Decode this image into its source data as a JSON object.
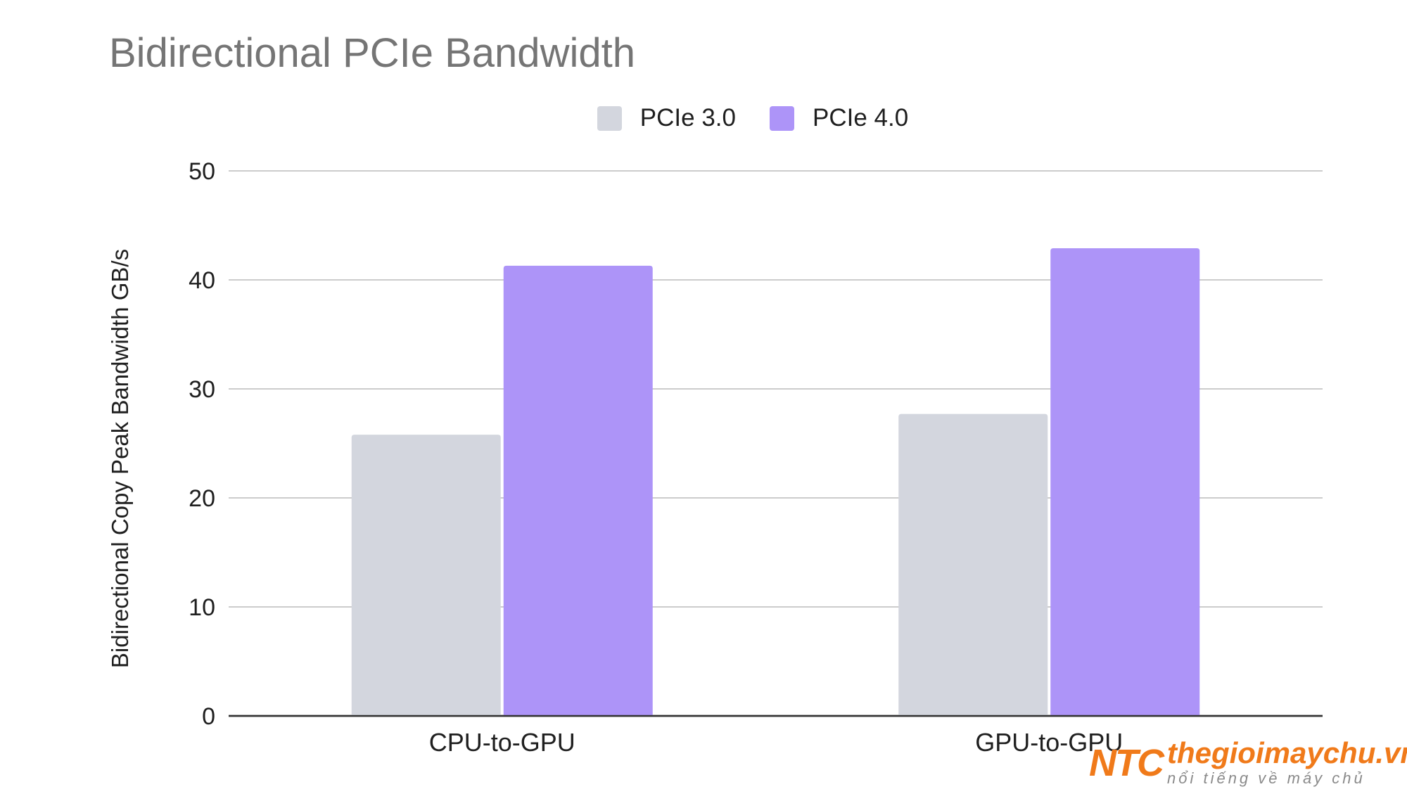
{
  "chart_data": {
    "type": "bar",
    "title": "Bidirectional PCIe Bandwidth",
    "xlabel": "",
    "ylabel": "Bidirectional Copy Peak Bandwidth GB/s",
    "categories": [
      "CPU-to-GPU",
      "GPU-to-GPU"
    ],
    "series": [
      {
        "name": "PCIe 3.0",
        "values": [
          25.8,
          27.7
        ],
        "color": "#d3d6de"
      },
      {
        "name": "PCIe 4.0",
        "values": [
          41.3,
          42.9
        ],
        "color": "#ad94f8"
      }
    ],
    "ylim": [
      0,
      50
    ],
    "yticks": [
      "0",
      "10",
      "20",
      "30",
      "40",
      "50"
    ],
    "grid": true,
    "legend_position": "top-center"
  },
  "watermark": {
    "brand": "NTC",
    "site": "thegioimaychu.vn",
    "slogan": "nổi tiếng về máy chủ"
  }
}
